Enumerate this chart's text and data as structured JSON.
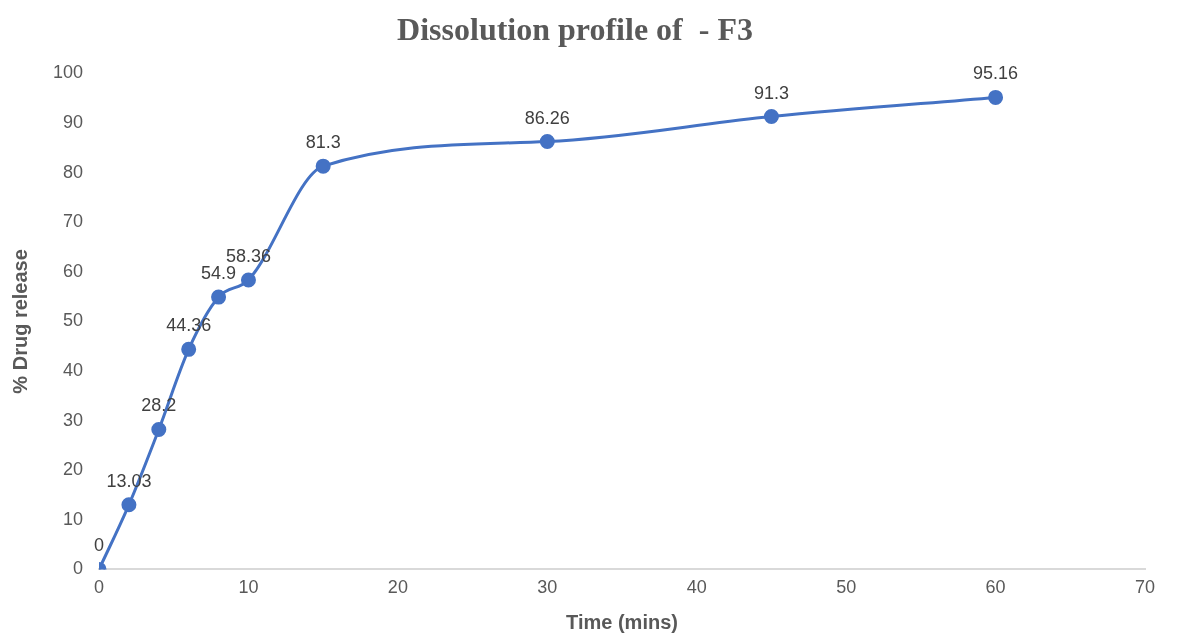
{
  "chart_data": {
    "type": "line",
    "title": "Dissolution profile of  - F3",
    "xlabel": "Time (mins)",
    "ylabel": "% Drug release",
    "x": [
      0,
      2,
      4,
      6,
      8,
      10,
      15,
      30,
      45,
      60
    ],
    "series": [
      {
        "color": "#4472c4",
        "values": [
          0,
          13.03,
          28.2,
          44.36,
          54.9,
          58.36,
          81.3,
          86.26,
          91.3,
          95.16
        ]
      }
    ],
    "xlim": [
      0,
      70
    ],
    "xticks": [
      0,
      10,
      20,
      30,
      40,
      50,
      60,
      70
    ],
    "ylim": [
      0,
      100
    ],
    "yticks": [
      0,
      10,
      20,
      30,
      40,
      50,
      60,
      70,
      80,
      90,
      100
    ],
    "grid": false,
    "legend": false,
    "marker": "circle",
    "line_style": "solid",
    "data_labels": true
  }
}
